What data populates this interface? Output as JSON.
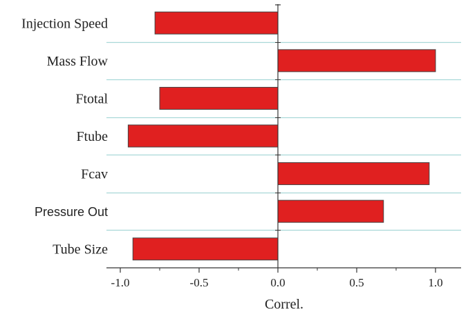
{
  "chart_data": {
    "type": "bar",
    "orientation": "horizontal",
    "categories": [
      "Injection Speed",
      "Mass Flow",
      "Ftotal",
      "Ftube",
      "Fcav",
      "Pressure Out",
      "Tube Size"
    ],
    "values": [
      -0.78,
      1.0,
      -0.75,
      -0.95,
      0.96,
      0.67,
      -0.92
    ],
    "xlabel": "Correl.",
    "xlim": [
      -1.1,
      1.16
    ],
    "xticks": [
      "-1.0",
      "-0.5",
      "0.0",
      "0.5",
      "1.0"
    ],
    "xtick_values": [
      -1.0,
      -0.5,
      0.0,
      0.5,
      1.0
    ],
    "bar_color": "#e02020",
    "grid_color": "#a8d8d8",
    "grid": "horizontal separators between categories"
  }
}
